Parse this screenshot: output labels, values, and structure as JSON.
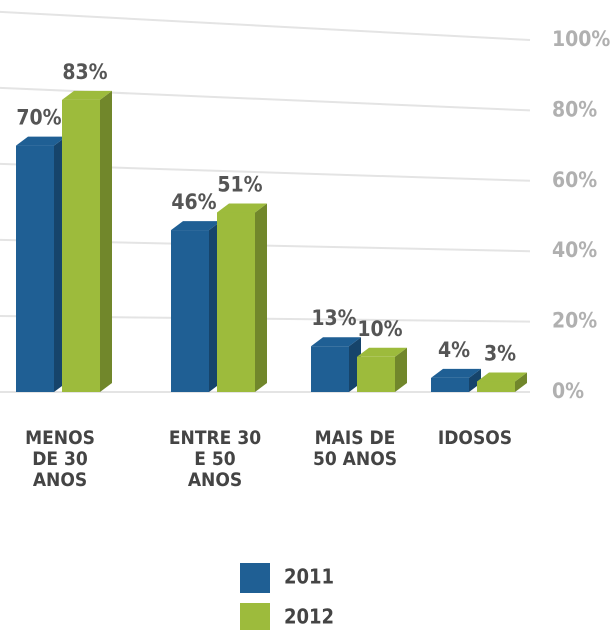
{
  "chart_data": {
    "type": "bar",
    "categories": [
      "MENOS DE 30 ANOS",
      "ENTRE 30 E 50 ANOS",
      "MAIS DE 50 ANOS",
      "IDOSOS"
    ],
    "series": [
      {
        "name": "2011",
        "color": "#1f5f94",
        "values": [
          70,
          46,
          13,
          4
        ],
        "value_labels": [
          "70%",
          "46%",
          "13%",
          "4%"
        ]
      },
      {
        "name": "2012",
        "color": "#9dbb3c",
        "values": [
          83,
          51,
          10,
          3
        ],
        "value_labels": [
          "83%",
          "51%",
          "10%",
          "3%"
        ]
      }
    ],
    "ylim": [
      0,
      100
    ],
    "yticks": [
      {
        "value": 0,
        "label": "0%"
      },
      {
        "value": 20,
        "label": "20%"
      },
      {
        "value": 40,
        "label": "40%"
      },
      {
        "value": 60,
        "label": "60%"
      },
      {
        "value": 80,
        "label": "80%"
      },
      {
        "value": 100,
        "label": "100%"
      }
    ],
    "grid": true
  }
}
